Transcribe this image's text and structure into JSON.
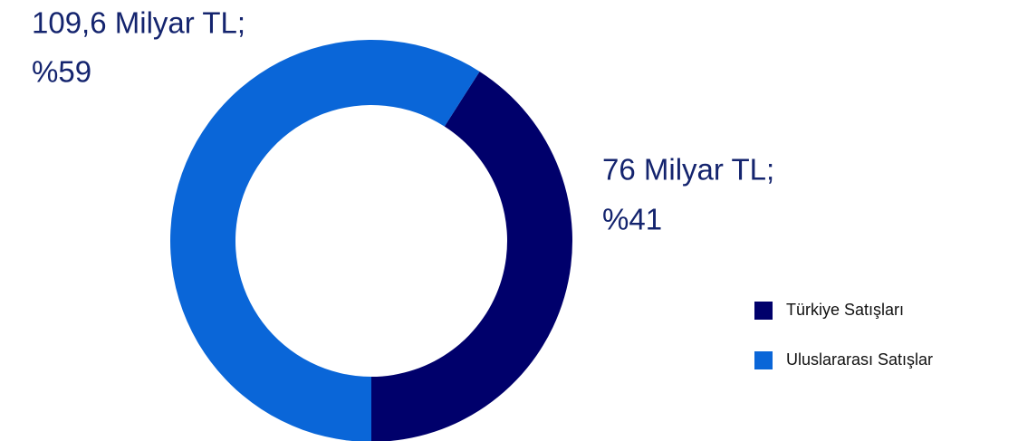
{
  "chart_data": {
    "type": "donut",
    "categories": [
      "Türkiye Satışları",
      "Uluslararası Satışlar"
    ],
    "values": [
      76,
      109.6
    ],
    "value_labels": [
      "76 Milyar TL;",
      "109,6 Milyar TL;"
    ],
    "percents": [
      41,
      59
    ],
    "percent_labels": [
      "%41",
      "%59"
    ],
    "colors": [
      "#00006b",
      "#0a66d8"
    ],
    "legend": "right"
  }
}
